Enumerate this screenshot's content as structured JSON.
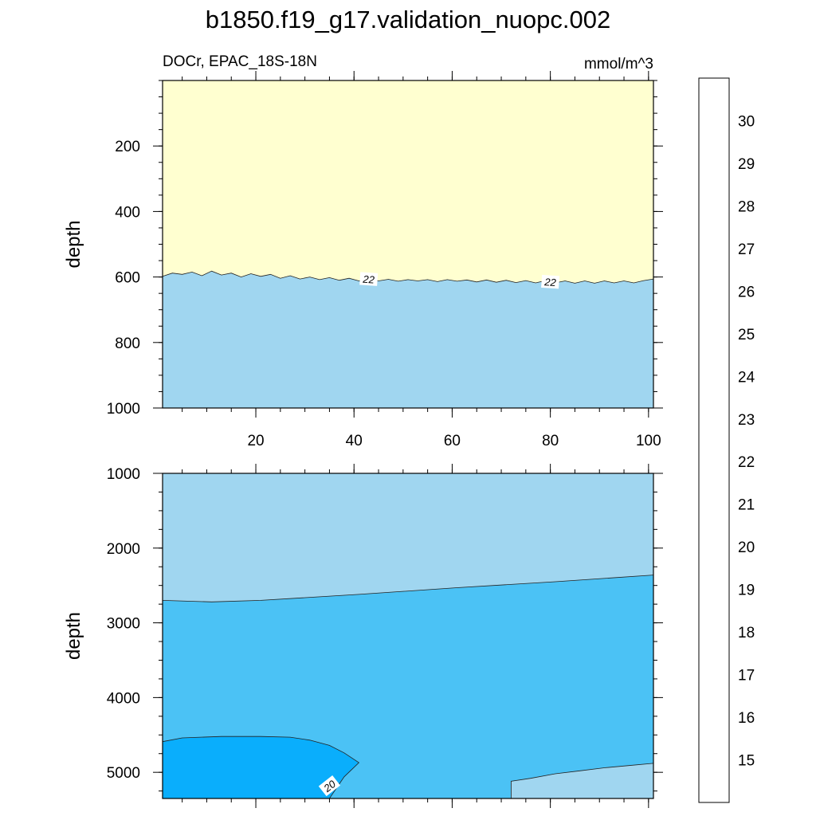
{
  "chart_data": {
    "type": "contour",
    "title": "b1850.f19_g17.validation_nuopc.002",
    "left_subtitle": "DOCr, EPAC_18S-18N",
    "right_subtitle": "mmol/m^3",
    "ylabel": "depth",
    "xlim": [
      1,
      101
    ],
    "x_ticks": [
      20,
      40,
      60,
      80,
      100
    ],
    "panels": [
      {
        "name": "upper",
        "ylim": [
          0,
          1000
        ],
        "y_inverted": true,
        "y_ticks": [
          200,
          400,
          600,
          800,
          1000
        ],
        "regions": [
          {
            "level": "22-23",
            "description": "above contour"
          },
          {
            "level": "21-22",
            "description": "below contour"
          }
        ],
        "contours": [
          {
            "value": 22,
            "label": "22",
            "label_x": [
              43,
              80
            ],
            "x": [
              1,
              3,
              5,
              7,
              9,
              11,
              13,
              15,
              17,
              19,
              21,
              23,
              25,
              27,
              29,
              31,
              33,
              35,
              37,
              39,
              41,
              43,
              45,
              47,
              49,
              51,
              53,
              55,
              57,
              59,
              61,
              63,
              65,
              67,
              69,
              71,
              73,
              75,
              77,
              79,
              81,
              83,
              85,
              87,
              89,
              91,
              93,
              95,
              97,
              99,
              101
            ],
            "depth": [
              598,
              588,
              592,
              585,
              596,
              582,
              594,
              588,
              600,
              590,
              598,
              592,
              604,
              596,
              606,
              600,
              608,
              602,
              610,
              604,
              612,
              606,
              612,
              607,
              613,
              608,
              612,
              608,
              614,
              608,
              613,
              609,
              615,
              609,
              616,
              610,
              617,
              611,
              618,
              611,
              618,
              612,
              619,
              612,
              619,
              612,
              618,
              612,
              618,
              611,
              606
            ]
          }
        ]
      },
      {
        "name": "lower",
        "ylim": [
          1000,
          5350
        ],
        "y_inverted": true,
        "y_ticks": [
          1000,
          2000,
          3000,
          4000,
          5000
        ],
        "regions": [
          {
            "level": "21-22",
            "description": "upper layer and lower-right corner"
          },
          {
            "level": "20-21",
            "description": "middle layer"
          },
          {
            "level": "19-20",
            "description": "lower-left lobe"
          }
        ],
        "contours": [
          {
            "value": 21,
            "x": [
              1,
              6,
              11,
              21,
              41,
              61,
              81,
              101
            ],
            "depth": [
              2700,
              2710,
              2720,
              2700,
              2620,
              2530,
              2450,
              2360
            ]
          },
          {
            "value": 20,
            "label": "20",
            "label_x": 35,
            "x": [
              1,
              5,
              13,
              21,
              27,
              31,
              35,
              38,
              41,
              38,
              35
            ],
            "depth": [
              4590,
              4540,
              4520,
              4520,
              4530,
              4570,
              4640,
              4740,
              4870,
              5060,
              5350
            ]
          },
          {
            "value": 21,
            "x": [
              72,
              72,
              76,
              81,
              86,
              91,
              96,
              101
            ],
            "depth": [
              5350,
              5120,
              5080,
              5020,
              4980,
              4940,
              4910,
              4880
            ]
          }
        ]
      }
    ],
    "colorbar": {
      "labels": [
        "15",
        "16",
        "17",
        "18",
        "19",
        "20",
        "21",
        "22",
        "23",
        "24",
        "25",
        "26",
        "27",
        "28",
        "29",
        "30"
      ],
      "colors": [
        "#ffb0b4",
        "#d42424",
        "#e60000",
        "#ff1a00",
        "#ff6a00",
        "#ffa000",
        "#ffc21a",
        "#ffea55",
        "#ffffd0",
        "#a0d6f0",
        "#4bc2f5",
        "#0aaefc",
        "#1e8cff",
        "#3a70e8",
        "#2038f0",
        "#1e08fc",
        "#8020f0"
      ]
    },
    "palette": {
      "level_19_20": "#0aaefc",
      "level_20_21": "#4bc2f5",
      "level_21_22": "#a0d6f0",
      "level_22_23": "#ffffd0"
    }
  }
}
